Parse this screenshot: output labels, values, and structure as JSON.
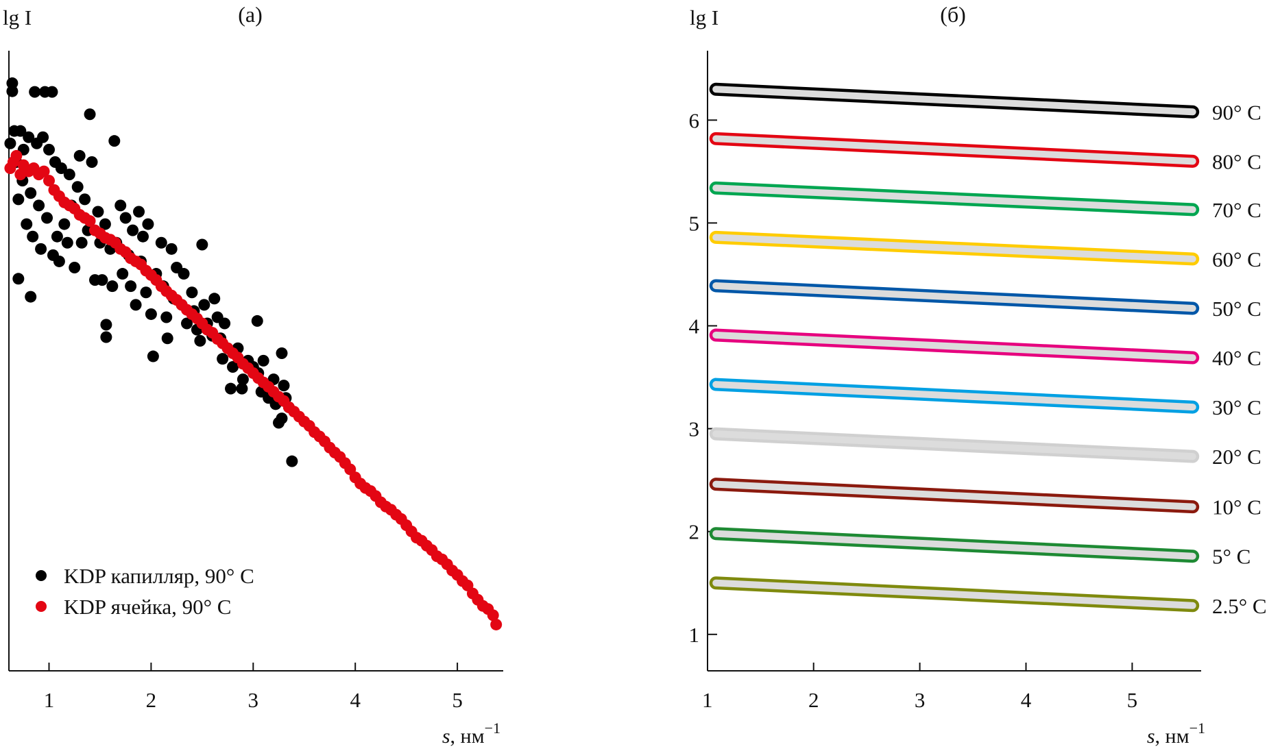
{
  "chart_data": [
    {
      "type": "scatter",
      "title": "(a)",
      "ylabel": "lg I",
      "xlabel_main": "s",
      "xlabel_unit": ", нм",
      "xlabel_exp": "−1",
      "xlim": [
        0.61,
        5.45
      ],
      "ylim": [
        0,
        10
      ],
      "y_units": "arbitrary (no y tick labels printed)",
      "x_ticks": [
        "1",
        "2",
        "3",
        "4",
        "5"
      ],
      "grid": false,
      "legend_position": "bottom-left",
      "series": [
        {
          "name": "KDP капилляр, 90° C",
          "color": "#000000",
          "points": [
            [
              0.62,
              8.5
            ],
            [
              0.64,
              9.47
            ],
            [
              0.64,
              9.34
            ],
            [
              0.66,
              8.7
            ],
            [
              0.68,
              8.2
            ],
            [
              0.7,
              7.6
            ],
            [
              0.7,
              6.32
            ],
            [
              0.72,
              8.7
            ],
            [
              0.74,
              7.9
            ],
            [
              0.75,
              8.4
            ],
            [
              0.78,
              7.2
            ],
            [
              0.8,
              8.6
            ],
            [
              0.82,
              6.03
            ],
            [
              0.82,
              7.7
            ],
            [
              0.84,
              7.0
            ],
            [
              0.86,
              9.33
            ],
            [
              0.88,
              8.5
            ],
            [
              0.9,
              7.5
            ],
            [
              0.92,
              6.8
            ],
            [
              0.94,
              8.6
            ],
            [
              0.96,
              9.33
            ],
            [
              0.98,
              7.3
            ],
            [
              1.0,
              8.4
            ],
            [
              1.03,
              9.33
            ],
            [
              1.04,
              6.7
            ],
            [
              1.06,
              8.2
            ],
            [
              1.08,
              7.0
            ],
            [
              1.1,
              6.6
            ],
            [
              1.12,
              8.1
            ],
            [
              1.15,
              7.2
            ],
            [
              1.18,
              6.9
            ],
            [
              1.2,
              8.0
            ],
            [
              1.22,
              7.5
            ],
            [
              1.25,
              6.5
            ],
            [
              1.28,
              7.8
            ],
            [
              1.3,
              8.3
            ],
            [
              1.32,
              6.9
            ],
            [
              1.35,
              7.6
            ],
            [
              1.38,
              7.1
            ],
            [
              1.4,
              8.97
            ],
            [
              1.42,
              8.2
            ],
            [
              1.45,
              6.3
            ],
            [
              1.48,
              7.4
            ],
            [
              1.5,
              6.9
            ],
            [
              1.52,
              6.3
            ],
            [
              1.55,
              7.2
            ],
            [
              1.56,
              5.58
            ],
            [
              1.56,
              5.38
            ],
            [
              1.6,
              6.8
            ],
            [
              1.62,
              6.2
            ],
            [
              1.64,
              8.54
            ],
            [
              1.66,
              6.9
            ],
            [
              1.7,
              7.5
            ],
            [
              1.72,
              6.4
            ],
            [
              1.75,
              7.3
            ],
            [
              1.78,
              6.7
            ],
            [
              1.8,
              6.2
            ],
            [
              1.82,
              7.1
            ],
            [
              1.85,
              5.9
            ],
            [
              1.88,
              7.4
            ],
            [
              1.9,
              6.6
            ],
            [
              1.92,
              7.0
            ],
            [
              1.95,
              6.1
            ],
            [
              1.97,
              7.2
            ],
            [
              2.0,
              5.75
            ],
            [
              2.02,
              5.07
            ],
            [
              2.05,
              6.4
            ],
            [
              2.1,
              6.9
            ],
            [
              2.12,
              6.2
            ],
            [
              2.15,
              5.7
            ],
            [
              2.16,
              5.36
            ],
            [
              2.2,
              6.8
            ],
            [
              2.22,
              6.0
            ],
            [
              2.25,
              6.5
            ],
            [
              2.3,
              5.9
            ],
            [
              2.32,
              6.4
            ],
            [
              2.35,
              5.6
            ],
            [
              2.4,
              6.1
            ],
            [
              2.42,
              5.8
            ],
            [
              2.45,
              5.5
            ],
            [
              2.48,
              5.32
            ],
            [
              2.5,
              6.87
            ],
            [
              2.52,
              5.9
            ],
            [
              2.55,
              5.6
            ],
            [
              2.6,
              5.4
            ],
            [
              2.62,
              6.0
            ],
            [
              2.65,
              5.7
            ],
            [
              2.68,
              5.36
            ],
            [
              2.7,
              5.03
            ],
            [
              2.72,
              5.6
            ],
            [
              2.75,
              5.2
            ],
            [
              2.78,
              4.55
            ],
            [
              2.8,
              4.9
            ],
            [
              2.85,
              5.2
            ],
            [
              2.89,
              4.55
            ],
            [
              2.9,
              4.7
            ],
            [
              2.95,
              5.0
            ],
            [
              3.0,
              4.9
            ],
            [
              3.04,
              5.64
            ],
            [
              3.05,
              4.8
            ],
            [
              3.08,
              4.5
            ],
            [
              3.1,
              5.0
            ],
            [
              3.12,
              4.6
            ],
            [
              3.15,
              4.4
            ],
            [
              3.2,
              4.7
            ],
            [
              3.22,
              4.3
            ],
            [
              3.25,
              4.0
            ],
            [
              3.28,
              5.12
            ],
            [
              3.28,
              4.07
            ],
            [
              3.3,
              4.6
            ],
            [
              3.32,
              4.4
            ],
            [
              3.35,
              4.25
            ],
            [
              3.38,
              3.38
            ]
          ]
        },
        {
          "name": "KDP ячейка, 90° C",
          "color": "#e30613",
          "points": [
            [
              0.62,
              8.1
            ],
            [
              0.65,
              8.2
            ],
            [
              0.68,
              8.3
            ],
            [
              0.72,
              8.0
            ],
            [
              0.75,
              8.15
            ],
            [
              0.8,
              8.05
            ],
            [
              0.85,
              8.1
            ],
            [
              0.9,
              8.0
            ],
            [
              0.95,
              8.05
            ],
            [
              1.0,
              7.9
            ],
            [
              1.05,
              7.75
            ],
            [
              1.1,
              7.65
            ],
            [
              1.15,
              7.55
            ],
            [
              1.2,
              7.5
            ],
            [
              1.25,
              7.45
            ],
            [
              1.3,
              7.35
            ],
            [
              1.35,
              7.3
            ],
            [
              1.4,
              7.25
            ],
            [
              1.45,
              7.1
            ],
            [
              1.5,
              7.05
            ],
            [
              1.55,
              6.98
            ],
            [
              1.6,
              6.95
            ],
            [
              1.65,
              6.9
            ],
            [
              1.7,
              6.8
            ],
            [
              1.75,
              6.75
            ],
            [
              1.8,
              6.65
            ],
            [
              1.85,
              6.6
            ],
            [
              1.9,
              6.55
            ],
            [
              1.95,
              6.45
            ],
            [
              2.0,
              6.38
            ],
            [
              2.05,
              6.3
            ],
            [
              2.1,
              6.2
            ],
            [
              2.15,
              6.12
            ],
            [
              2.2,
              6.05
            ],
            [
              2.25,
              5.98
            ],
            [
              2.3,
              5.9
            ],
            [
              2.35,
              5.82
            ],
            [
              2.4,
              5.75
            ],
            [
              2.45,
              5.68
            ],
            [
              2.5,
              5.6
            ],
            [
              2.55,
              5.5
            ],
            [
              2.6,
              5.45
            ],
            [
              2.65,
              5.35
            ],
            [
              2.7,
              5.28
            ],
            [
              2.75,
              5.2
            ],
            [
              2.8,
              5.12
            ],
            [
              2.85,
              5.05
            ],
            [
              2.9,
              4.95
            ],
            [
              2.95,
              4.88
            ],
            [
              3.0,
              4.8
            ],
            [
              3.05,
              4.72
            ],
            [
              3.1,
              4.65
            ],
            [
              3.15,
              4.58
            ],
            [
              3.2,
              4.5
            ],
            [
              3.25,
              4.42
            ],
            [
              3.3,
              4.35
            ],
            [
              3.35,
              4.25
            ],
            [
              3.4,
              4.18
            ],
            [
              3.45,
              4.1
            ],
            [
              3.5,
              4.02
            ],
            [
              3.55,
              3.95
            ],
            [
              3.6,
              3.85
            ],
            [
              3.65,
              3.78
            ],
            [
              3.7,
              3.7
            ],
            [
              3.75,
              3.6
            ],
            [
              3.8,
              3.52
            ],
            [
              3.85,
              3.45
            ],
            [
              3.9,
              3.35
            ],
            [
              3.95,
              3.25
            ],
            [
              4.0,
              3.12
            ],
            [
              4.05,
              3.02
            ],
            [
              4.1,
              2.95
            ],
            [
              4.15,
              2.9
            ],
            [
              4.2,
              2.82
            ],
            [
              4.25,
              2.72
            ],
            [
              4.3,
              2.65
            ],
            [
              4.35,
              2.6
            ],
            [
              4.4,
              2.52
            ],
            [
              4.45,
              2.45
            ],
            [
              4.5,
              2.35
            ],
            [
              4.55,
              2.25
            ],
            [
              4.6,
              2.15
            ],
            [
              4.65,
              2.1
            ],
            [
              4.7,
              2.02
            ],
            [
              4.75,
              1.95
            ],
            [
              4.8,
              1.85
            ],
            [
              4.85,
              1.8
            ],
            [
              4.9,
              1.72
            ],
            [
              4.95,
              1.62
            ],
            [
              5.0,
              1.55
            ],
            [
              5.05,
              1.45
            ],
            [
              5.1,
              1.38
            ],
            [
              5.15,
              1.25
            ],
            [
              5.2,
              1.15
            ],
            [
              5.25,
              1.05
            ],
            [
              5.3,
              1.0
            ],
            [
              5.35,
              0.9
            ],
            [
              5.38,
              0.75
            ]
          ]
        }
      ]
    },
    {
      "type": "line",
      "title": "(б)",
      "ylabel": "lg I",
      "xlabel_main": "s",
      "xlabel_unit": ", нм",
      "xlabel_exp": "−1",
      "xlim": [
        1,
        5.65
      ],
      "ylim": [
        0.64,
        6.66
      ],
      "x_ticks": [
        "1",
        "2",
        "3",
        "4",
        "5"
      ],
      "y_ticks": [
        "1",
        "2",
        "3",
        "4",
        "5",
        "6"
      ],
      "grid": false,
      "legend_position": "right (labels at line ends)",
      "fill_color": "#dcdcdc",
      "series": [
        {
          "name": "90° C",
          "color": "#000000",
          "x": [
            1.08,
            5.57
          ],
          "y": [
            6.3,
            6.08
          ]
        },
        {
          "name": "80° C",
          "color": "#e30613",
          "x": [
            1.08,
            5.57
          ],
          "y": [
            5.82,
            5.6
          ]
        },
        {
          "name": "70° C",
          "color": "#00a651",
          "x": [
            1.08,
            5.57
          ],
          "y": [
            5.34,
            5.13
          ]
        },
        {
          "name": "60° C",
          "color": "#ffcc00",
          "x": [
            1.08,
            5.57
          ],
          "y": [
            4.86,
            4.65
          ]
        },
        {
          "name": "50° C",
          "color": "#0057a8",
          "x": [
            1.08,
            5.57
          ],
          "y": [
            4.39,
            4.17
          ]
        },
        {
          "name": "40° C",
          "color": "#e6007e",
          "x": [
            1.08,
            5.57
          ],
          "y": [
            3.91,
            3.69
          ]
        },
        {
          "name": "30° C",
          "color": "#00a0e3",
          "x": [
            1.08,
            5.57
          ],
          "y": [
            3.43,
            3.21
          ]
        },
        {
          "name": "20° C",
          "color": "#d0d0d0",
          "x": [
            1.08,
            5.57
          ],
          "y": [
            2.95,
            2.73
          ]
        },
        {
          "name": "10° C",
          "color": "#8b1a0e",
          "x": [
            1.08,
            5.57
          ],
          "y": [
            2.46,
            2.24
          ]
        },
        {
          "name": "5° C",
          "color": "#1e8a34",
          "x": [
            1.08,
            5.57
          ],
          "y": [
            1.98,
            1.76
          ]
        },
        {
          "name": "2.5° C",
          "color": "#7f8a0e",
          "x": [
            1.08,
            5.57
          ],
          "y": [
            1.5,
            1.28
          ]
        }
      ]
    }
  ]
}
